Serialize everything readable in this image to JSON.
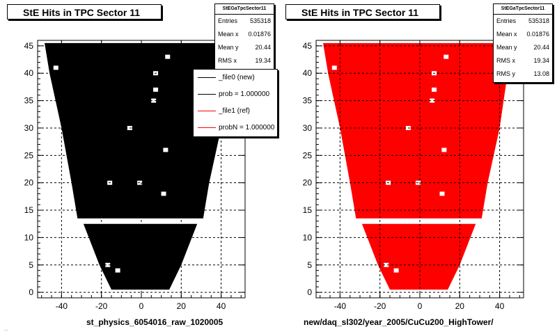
{
  "colors": {
    "ref": "#000000",
    "new": "#ff0000",
    "grid": "#000000"
  },
  "panels": [
    {
      "id": "left",
      "title": "StE Hits in TPC Sector 11",
      "stats": {
        "header": "StEGaTpcSector11",
        "rows": [
          {
            "label": "Entries",
            "value": "535318"
          },
          {
            "label": "Mean x",
            "value": "0.01876"
          },
          {
            "label": "Mean y",
            "value": "20.44"
          },
          {
            "label": "RMS x",
            "value": "19.34"
          }
        ]
      },
      "caption": "st_physics_6054016_raw_1020005"
    },
    {
      "id": "right",
      "title": "StE Hits in TPC Sector 11",
      "stats": {
        "header": "StEGaTpcSector11",
        "rows": [
          {
            "label": "Entries",
            "value": "535318"
          },
          {
            "label": "Mean x",
            "value": "0.01876"
          },
          {
            "label": "Mean y",
            "value": "20.44"
          },
          {
            "label": "RMS x",
            "value": "19.34"
          },
          {
            "label": "RMS y",
            "value": "13.08"
          }
        ]
      },
      "caption": "new/daq_sl302/year_2005/CuCu200_HighTower/"
    }
  ],
  "legend": {
    "items": [
      {
        "label": "_file0 (new)",
        "color": "#000000"
      },
      {
        "label": "prob = 1.000000",
        "color": "#000000"
      },
      {
        "label": "_file1 (ref)",
        "color": "#ff0000"
      },
      {
        "label": "probN = 1.000000",
        "color": "#ff0000"
      }
    ]
  },
  "footer_text": "...",
  "chart_data": [
    {
      "type": "heatmap",
      "title": "StE Hits in TPC Sector 11",
      "xlabel": "",
      "ylabel": "",
      "xlim": [
        -52,
        52
      ],
      "ylim": [
        -1,
        46
      ],
      "xticks": [
        -40,
        -20,
        0,
        20,
        40
      ],
      "yticks": [
        0,
        5,
        10,
        15,
        20,
        25,
        30,
        35,
        40,
        45
      ],
      "grid": true,
      "series_color": "#000000",
      "shape_rows": [
        {
          "y": 45.5,
          "xmin": -48.5,
          "xmax": 48.5
        },
        {
          "y": 40,
          "xmin": -46,
          "xmax": 44
        },
        {
          "y": 30,
          "xmin": -40,
          "xmax": 40
        },
        {
          "y": 20,
          "xmin": -35,
          "xmax": 34
        },
        {
          "y": 13.5,
          "xmin": -32,
          "xmax": 31
        },
        {
          "y": 12.5,
          "xmin": -29,
          "xmax": 28
        },
        {
          "y": 5,
          "xmin": -21,
          "xmax": 20
        },
        {
          "y": 0.5,
          "xmin": -15,
          "xmax": 14
        }
      ],
      "gap_y": [
        13.2,
        12.7
      ],
      "holes": [
        [
          -43,
          41
        ],
        [
          13,
          43
        ],
        [
          7,
          40
        ],
        [
          -6,
          30
        ],
        [
          12,
          26
        ],
        [
          -16,
          20
        ],
        [
          -1,
          20
        ],
        [
          11,
          18
        ],
        [
          -17,
          5
        ],
        [
          -12,
          4
        ],
        [
          7,
          37
        ],
        [
          6,
          35
        ]
      ]
    },
    {
      "type": "heatmap",
      "title": "StE Hits in TPC Sector 11",
      "xlabel": "",
      "ylabel": "",
      "xlim": [
        -52,
        52
      ],
      "ylim": [
        -1,
        46
      ],
      "xticks": [
        -40,
        -20,
        0,
        20,
        40
      ],
      "yticks": [
        0,
        5,
        10,
        15,
        20,
        25,
        30,
        35,
        40,
        45
      ],
      "grid": true,
      "series_color": "#ff0000",
      "shape_rows": [
        {
          "y": 45.5,
          "xmin": -48.5,
          "xmax": 48.5
        },
        {
          "y": 40,
          "xmin": -46,
          "xmax": 44
        },
        {
          "y": 30,
          "xmin": -40,
          "xmax": 40
        },
        {
          "y": 20,
          "xmin": -35,
          "xmax": 34
        },
        {
          "y": 13.5,
          "xmin": -32,
          "xmax": 31
        },
        {
          "y": 12.5,
          "xmin": -29,
          "xmax": 28
        },
        {
          "y": 5,
          "xmin": -21,
          "xmax": 20
        },
        {
          "y": 0.5,
          "xmin": -15,
          "xmax": 14
        }
      ],
      "gap_y": [
        13.2,
        12.7
      ],
      "holes": [
        [
          -43,
          41
        ],
        [
          13,
          43
        ],
        [
          7,
          40
        ],
        [
          -6,
          30
        ],
        [
          12,
          26
        ],
        [
          -16,
          20
        ],
        [
          -1,
          20
        ],
        [
          11,
          18
        ],
        [
          -17,
          5
        ],
        [
          -12,
          4
        ],
        [
          7,
          37
        ],
        [
          6,
          35
        ]
      ]
    }
  ]
}
